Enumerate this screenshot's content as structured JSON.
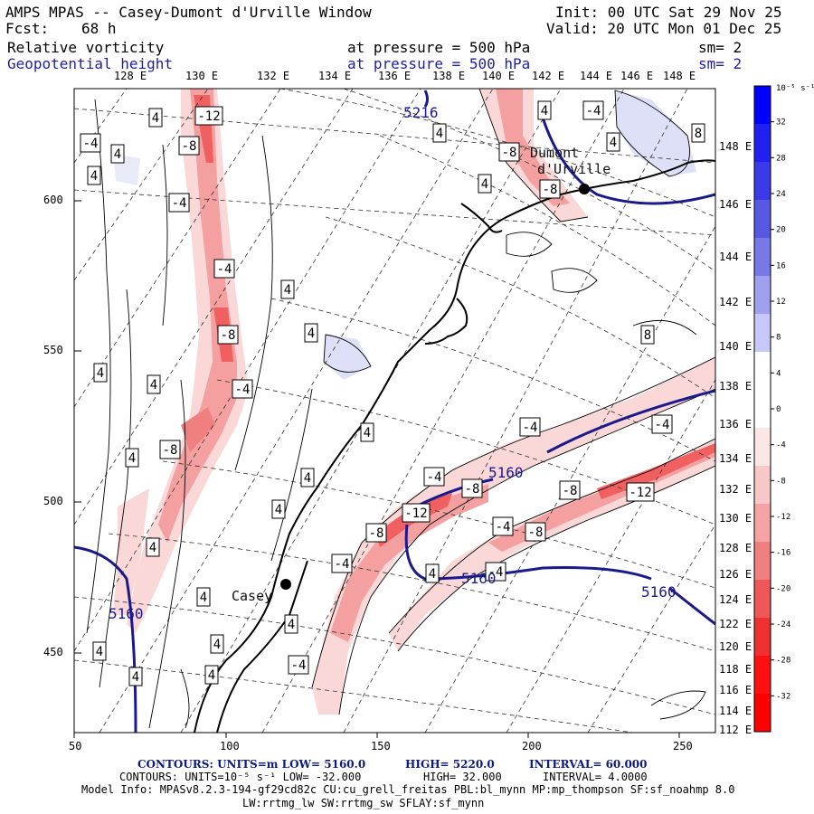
{
  "header": {
    "title": "AMPS MPAS -- Casey-Dumont d'Urville Window",
    "init": "Init: 00 UTC Sat 29 Nov 25",
    "fcst_label": "Fcst:",
    "fcst_value": "68 h",
    "valid": "Valid: 20 UTC Mon 01 Dec 25",
    "field1_name": "Relative vorticity",
    "field1_pressure": "at pressure =  500 hPa",
    "field1_sm": "sm= 2",
    "field2_name": "Geopotential height",
    "field2_pressure": "at pressure =  500 hPa",
    "field2_sm": "sm= 2"
  },
  "map": {
    "lon_labels_top": [
      "128 E",
      "130 E",
      "132 E",
      "134 E",
      "136 E",
      "138 E",
      "140 E",
      "142 E",
      "144 E",
      "146 E",
      "148 E"
    ],
    "lat_labels_right": [
      "148 E",
      "146 E",
      "144 E",
      "142 E",
      "140 E",
      "138 E",
      "136 E",
      "134 E",
      "132 E",
      "130 E",
      "128 E",
      "126 E",
      "124 E",
      "122 E",
      "120 E",
      "118 E",
      "116 E",
      "114 E",
      "112 E"
    ],
    "x_axis": [
      50,
      100,
      150,
      200,
      250
    ],
    "y_axis": [
      600,
      550,
      500,
      450
    ],
    "stations": [
      {
        "name": "Casey"
      },
      {
        "name": "Dumont d'Urville"
      }
    ],
    "vorticity_labels": [
      "-12",
      "-8",
      "-8",
      "-4",
      "-4",
      "-8",
      "-4",
      "-8",
      "-8",
      "-4",
      "-12",
      "-8",
      "-4",
      "-4",
      "-8",
      "-12",
      "-8",
      "-4",
      "-4",
      "-8",
      "-4",
      "-4",
      "-4",
      "-4",
      "4",
      "4",
      "4",
      "4",
      "4",
      "4",
      "4",
      "4",
      "4",
      "4",
      "4",
      "4",
      "4",
      "4",
      "4",
      "4",
      "4",
      "4",
      "4",
      "8",
      "8",
      "4",
      "4",
      "4",
      "4"
    ],
    "height_labels": [
      "5216",
      "5160",
      "5160",
      "5160",
      "5160"
    ],
    "colors": {
      "neg_strong": "#f06060",
      "neg_mid": "#f4a0a0",
      "neg_light": "#fbd8d8",
      "pos_light": "#dde0f6",
      "height_contour": "#1a1a8c",
      "coast": "#000000"
    }
  },
  "colorbar": {
    "unit": "10⁻⁵ s⁻¹",
    "ticks": [
      "32",
      "28",
      "24",
      "20",
      "16",
      "12",
      "8",
      "4",
      "0",
      "-4",
      "-8",
      "-12",
      "-16",
      "-20",
      "-24",
      "-28",
      "-32"
    ],
    "colors": [
      "#0000ff",
      "#2020f0",
      "#3a3ae8",
      "#5858e0",
      "#7878e6",
      "#a0a0ee",
      "#c8c8f6",
      "#ffffff",
      "#ffffff",
      "#fde6e6",
      "#f8c8c8",
      "#f4a4a4",
      "#f08080",
      "#ee5858",
      "#ee3030",
      "#ff1010",
      "#ff0000"
    ]
  },
  "footer": {
    "contours1_label": "CONTOURS:  UNITS=m  LOW=  5160.0",
    "contours1_high": "HIGH=  5220.0",
    "contours1_interval": "INTERVAL=   60.000",
    "contours2_label": "CONTOURS:  UNITS=10⁻⁵ s⁻¹  LOW= -32.000",
    "contours2_high": "HIGH=  32.000",
    "contours2_interval": "INTERVAL=   4.0000",
    "model_info": "Model Info: MPASv8.2.3-194-gf29cd82c CU:cu_grell_freitas PBL:bl_mynn MP:mp_thompson SF:sf_noahmp 8.0",
    "model_info2": "LW:rrtmg_lw SW:rrtmg_sw SFLAY:sf_mynn"
  }
}
